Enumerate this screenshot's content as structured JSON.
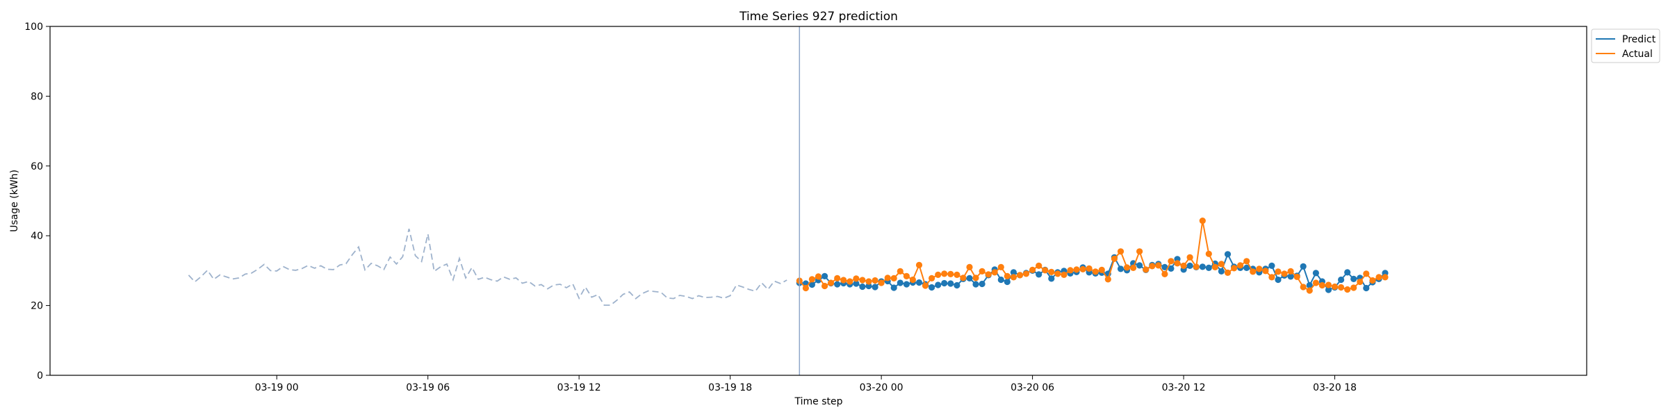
{
  "chart_data": {
    "type": "line",
    "title": "Time Series 927 prediction",
    "xlabel": "Time step",
    "ylabel": "Usage (kWh)",
    "ylim": [
      0,
      100
    ],
    "xlim": [
      "2024-03-18 15:00",
      "2024-03-21 04:00"
    ],
    "yticks": [
      0,
      20,
      40,
      60,
      80,
      100
    ],
    "xticks": [
      {
        "t": "2024-03-19 00:00",
        "label": "03-19 00"
      },
      {
        "t": "2024-03-19 06:00",
        "label": "03-19 06"
      },
      {
        "t": "2024-03-19 12:00",
        "label": "03-19 12"
      },
      {
        "t": "2024-03-19 18:00",
        "label": "03-19 18"
      },
      {
        "t": "2024-03-20 00:00",
        "label": "03-20 00"
      },
      {
        "t": "2024-03-20 06:00",
        "label": "03-20 06"
      },
      {
        "t": "2024-03-20 12:00",
        "label": "03-20 12"
      },
      {
        "t": "2024-03-20 18:00",
        "label": "03-20 18"
      }
    ],
    "grid": false,
    "legend_position": "outside-top-right",
    "forecast_start": "2024-03-19 20:45",
    "history": {
      "start": "2024-03-18 20:30",
      "interval_minutes": 15,
      "color": "#9eb2cc",
      "style": "dashed",
      "values": [
        28.7,
        26.8,
        28.3,
        30.1,
        27.5,
        28.8,
        28.2,
        27.6,
        27.9,
        29.0,
        29.3,
        30.4,
        31.8,
        30.0,
        29.9,
        31.2,
        30.3,
        30.1,
        30.6,
        31.5,
        30.7,
        31.4,
        30.4,
        30.3,
        31.6,
        32.0,
        34.6,
        36.8,
        30.2,
        32.1,
        31.4,
        30.3,
        33.9,
        31.9,
        34.0,
        42.0,
        34.3,
        32.6,
        40.5,
        29.8,
        31.1,
        31.9,
        27.4,
        33.5,
        27.9,
        30.9,
        27.5,
        28.1,
        27.4,
        27.0,
        28.2,
        27.5,
        27.9,
        26.4,
        26.9,
        25.6,
        26.0,
        24.8,
        25.9,
        26.1,
        25.1,
        26.2,
        22.1,
        25.3,
        22.4,
        23.1,
        20.1,
        20.1,
        21.5,
        23.2,
        23.9,
        22.0,
        23.4,
        24.2,
        24.0,
        23.8,
        22.2,
        22.0,
        22.9,
        22.6,
        22.0,
        22.8,
        22.3,
        22.4,
        22.6,
        22.1,
        22.8,
        25.9,
        25.3,
        24.6,
        24.1,
        26.5,
        24.6,
        27.0,
        26.3,
        27.3
      ]
    },
    "series": [
      {
        "name": "Predict",
        "color": "#1f77b4",
        "start": "2024-03-19 20:45",
        "interval_minutes": 15,
        "values": [
          26.5,
          26.3,
          26.0,
          27.3,
          28.4,
          26.4,
          26.1,
          26.4,
          26.1,
          26.3,
          25.4,
          25.6,
          25.3,
          26.9,
          27.0,
          25.1,
          26.5,
          26.1,
          26.6,
          26.6,
          26.1,
          25.2,
          25.9,
          26.4,
          26.3,
          25.8,
          27.6,
          27.8,
          26.1,
          26.2,
          28.7,
          30.3,
          27.4,
          26.8,
          29.5,
          28.7,
          29.3,
          30.0,
          28.9,
          30.2,
          27.7,
          29.5,
          29.9,
          29.2,
          29.6,
          30.9,
          29.5,
          29.2,
          29.4,
          29.1,
          33.8,
          30.5,
          30.1,
          32.1,
          31.5,
          30.2,
          31.6,
          31.9,
          31.0,
          30.6,
          33.3,
          30.3,
          31.4,
          31.0,
          31.1,
          30.8,
          32.0,
          29.8,
          34.7,
          31.1,
          30.8,
          30.8,
          30.5,
          29.5,
          30.5,
          31.4,
          27.4,
          28.6,
          28.3,
          28.5,
          31.2,
          25.8,
          29.3,
          26.9,
          24.5,
          25.2,
          27.4,
          29.5,
          27.6,
          27.9,
          25.0,
          26.7,
          27.6,
          29.3
        ]
      },
      {
        "name": "Actual",
        "color": "#ff7f0e",
        "start": "2024-03-19 20:45",
        "interval_minutes": 15,
        "values": [
          27.1,
          25.0,
          27.5,
          28.3,
          25.6,
          26.5,
          27.8,
          27.3,
          26.9,
          27.7,
          27.3,
          26.9,
          27.2,
          26.5,
          27.9,
          27.8,
          29.8,
          28.4,
          27.4,
          31.6,
          25.7,
          27.8,
          28.8,
          29.1,
          29.0,
          28.8,
          27.9,
          31.0,
          27.9,
          29.8,
          28.9,
          29.5,
          31.0,
          28.4,
          28.1,
          28.7,
          29.1,
          30.2,
          31.4,
          30.1,
          29.6,
          29.1,
          28.8,
          30.1,
          30.3,
          30.4,
          30.6,
          29.7,
          30.2,
          27.5,
          33.4,
          35.5,
          30.9,
          30.8,
          35.5,
          30.3,
          31.3,
          31.5,
          29.0,
          32.7,
          32.1,
          31.4,
          33.8,
          31.1,
          44.3,
          34.8,
          31.0,
          31.9,
          29.4,
          30.7,
          31.5,
          32.7,
          29.7,
          30.5,
          29.9,
          28.1,
          29.7,
          29.1,
          29.8,
          28.2,
          25.3,
          24.3,
          26.5,
          25.8,
          25.9,
          25.4,
          25.2,
          24.6,
          25.1,
          26.8,
          29.1,
          27.2,
          28.1,
          28.1
        ]
      }
    ]
  }
}
